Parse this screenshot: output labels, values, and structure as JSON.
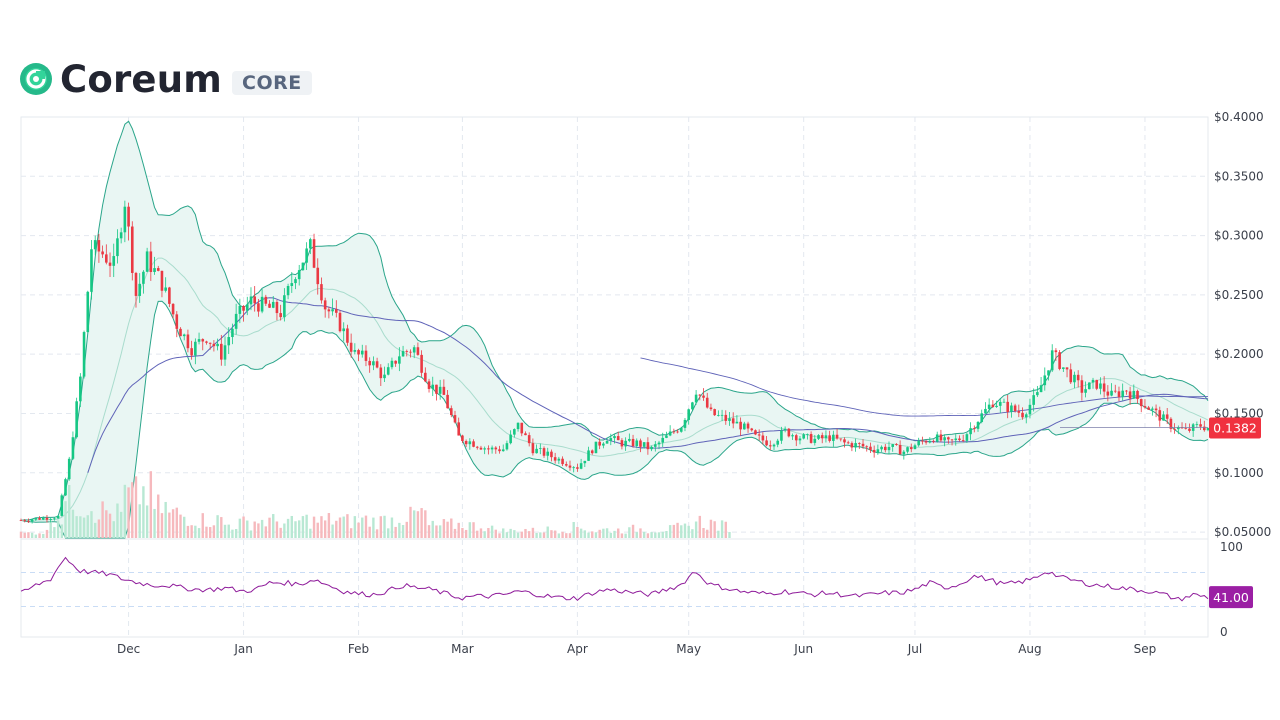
{
  "header": {
    "name": "Coreum",
    "ticker": "CORE",
    "logo_icon": "coreum-logo-icon",
    "logo_color": "#25d695"
  },
  "colors": {
    "up": "#16c784",
    "down": "#ea3943",
    "band": "#2aa58a",
    "band_fill": "#e9f6f3",
    "ma_long": "#5f63b8",
    "rsi": "#8e1a9a",
    "price_badge": "#f0313f",
    "rsi_badge": "#9b1fa4",
    "grid": "#e3e8ef"
  },
  "chart_data": {
    "type": "candlestick",
    "title": "",
    "price_axis": {
      "ticks": [
        "$0.4000",
        "$0.3500",
        "$0.3000",
        "$0.2500",
        "$0.2000",
        "$0.1500",
        "$0.1000",
        "$0.05000"
      ],
      "range": [
        0.045,
        0.4
      ]
    },
    "rsi_axis": {
      "ticks": [
        "100",
        "0"
      ],
      "range": [
        0,
        100
      ],
      "reference_lines": [
        70,
        30
      ]
    },
    "x_axis": {
      "ticks": [
        "Dec",
        "Jan",
        "Feb",
        "Mar",
        "Apr",
        "May",
        "Jun",
        "Jul",
        "Aug",
        "Sep"
      ],
      "range": [
        "2022-11-02",
        "2023-09-18"
      ]
    },
    "current_price": "0.1382",
    "current_rsi": "41.00",
    "price_series": {
      "dates": [
        "2022-11-02",
        "2022-11-12",
        "2022-11-15",
        "2022-11-18",
        "2022-11-21",
        "2022-11-24",
        "2022-11-27",
        "2022-11-30",
        "2022-12-03",
        "2022-12-06",
        "2022-12-10",
        "2022-12-14",
        "2022-12-18",
        "2022-12-22",
        "2022-12-26",
        "2022-12-30",
        "2023-01-03",
        "2023-01-07",
        "2023-01-11",
        "2023-01-15",
        "2023-01-19",
        "2023-01-23",
        "2023-01-27",
        "2023-01-31",
        "2023-02-04",
        "2023-02-08",
        "2023-02-12",
        "2023-02-16",
        "2023-02-20",
        "2023-02-24",
        "2023-02-28",
        "2023-03-04",
        "2023-03-08",
        "2023-03-12",
        "2023-03-16",
        "2023-03-20",
        "2023-03-24",
        "2023-03-28",
        "2023-04-01",
        "2023-04-05",
        "2023-04-09",
        "2023-04-13",
        "2023-04-17",
        "2023-04-21",
        "2023-04-25",
        "2023-04-29",
        "2023-05-03",
        "2023-05-07",
        "2023-05-11",
        "2023-05-15",
        "2023-05-19",
        "2023-05-23",
        "2023-05-27",
        "2023-05-31",
        "2023-06-04",
        "2023-06-08",
        "2023-06-12",
        "2023-06-16",
        "2023-06-20",
        "2023-06-24",
        "2023-06-28",
        "2023-07-02",
        "2023-07-06",
        "2023-07-10",
        "2023-07-14",
        "2023-07-18",
        "2023-07-22",
        "2023-07-26",
        "2023-07-30",
        "2023-08-03",
        "2023-08-07",
        "2023-08-11",
        "2023-08-15",
        "2023-08-19",
        "2023-08-23",
        "2023-08-27",
        "2023-08-31",
        "2023-09-04",
        "2023-09-08",
        "2023-09-12",
        "2023-09-16",
        "2023-09-18"
      ],
      "close": [
        0.06,
        0.063,
        0.11,
        0.18,
        0.29,
        0.285,
        0.275,
        0.33,
        0.25,
        0.28,
        0.26,
        0.225,
        0.205,
        0.215,
        0.2,
        0.23,
        0.245,
        0.24,
        0.235,
        0.27,
        0.29,
        0.24,
        0.225,
        0.2,
        0.195,
        0.18,
        0.2,
        0.205,
        0.175,
        0.165,
        0.13,
        0.125,
        0.12,
        0.12,
        0.14,
        0.12,
        0.115,
        0.11,
        0.105,
        0.12,
        0.13,
        0.125,
        0.125,
        0.12,
        0.13,
        0.14,
        0.17,
        0.15,
        0.145,
        0.14,
        0.13,
        0.125,
        0.135,
        0.13,
        0.128,
        0.13,
        0.125,
        0.123,
        0.12,
        0.122,
        0.118,
        0.125,
        0.13,
        0.125,
        0.13,
        0.145,
        0.16,
        0.155,
        0.15,
        0.165,
        0.2,
        0.185,
        0.17,
        0.175,
        0.165,
        0.17,
        0.16,
        0.15,
        0.14,
        0.135,
        0.14,
        0.138
      ]
    },
    "volume": {
      "unit": "relative",
      "values": [
        0.08,
        0.1,
        0.35,
        0.6,
        0.55,
        0.45,
        0.4,
        0.7,
        0.75,
        0.5,
        0.4,
        0.35,
        0.3,
        0.3,
        0.22,
        0.25,
        0.28,
        0.28,
        0.25,
        0.3,
        0.28,
        0.3,
        0.28,
        0.3,
        0.28,
        0.3,
        0.35,
        0.4,
        0.2,
        0.22,
        0.22,
        0.2,
        0.15,
        0.12,
        0.14,
        0.12,
        0.14,
        0.15,
        0.18,
        0.12,
        0.14,
        0.13,
        0.15,
        0.14,
        0.15,
        0.17,
        0.28,
        0.24,
        0.2,
        0.0,
        0.0,
        0.0,
        0.0,
        0.0,
        0.0,
        0.0,
        0.0,
        0.0,
        0.0,
        0.0,
        0.0,
        0.0,
        0.0,
        0.0,
        0.0,
        0.0,
        0.0,
        0.0,
        0.0,
        0.0,
        0.0,
        0.0,
        0.0,
        0.0,
        0.0,
        0.0,
        0.0,
        0.0,
        0.0,
        0.0,
        0.0,
        0.0
      ]
    },
    "rsi_series": [
      45,
      55,
      62,
      88,
      72,
      70,
      68,
      62,
      58,
      55,
      55,
      52,
      50,
      50,
      52,
      48,
      50,
      58,
      58,
      56,
      62,
      55,
      48,
      45,
      44,
      48,
      55,
      52,
      50,
      45,
      40,
      42,
      42,
      44,
      48,
      45,
      42,
      40,
      40,
      46,
      50,
      48,
      46,
      44,
      50,
      55,
      72,
      56,
      52,
      48,
      46,
      45,
      48,
      46,
      44,
      46,
      44,
      42,
      44,
      46,
      46,
      50,
      58,
      52,
      56,
      66,
      62,
      56,
      58,
      62,
      72,
      64,
      60,
      56,
      54,
      52,
      50,
      48,
      44,
      38,
      44,
      41
    ]
  }
}
